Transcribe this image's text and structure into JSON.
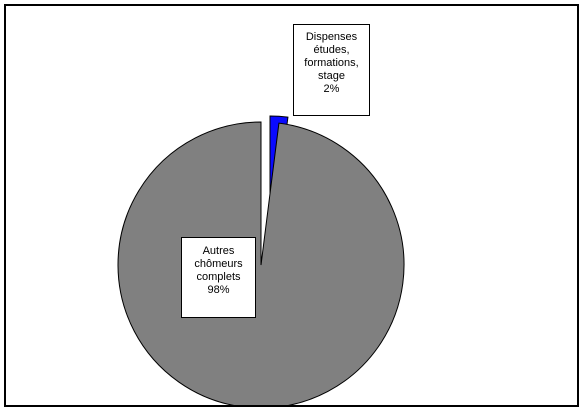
{
  "chart_data": {
    "type": "pie",
    "slices": [
      {
        "label_lines": [
          "Dispenses",
          "études,",
          "formations,",
          "stage"
        ],
        "value_label": "2%",
        "value": 2,
        "color": "#0a0aff",
        "exploded": true
      },
      {
        "label_lines": [
          "Autres",
          "chômeurs",
          "complets"
        ],
        "value_label": "98%",
        "value": 98,
        "color": "#808080",
        "exploded": true
      }
    ],
    "legend": false
  }
}
